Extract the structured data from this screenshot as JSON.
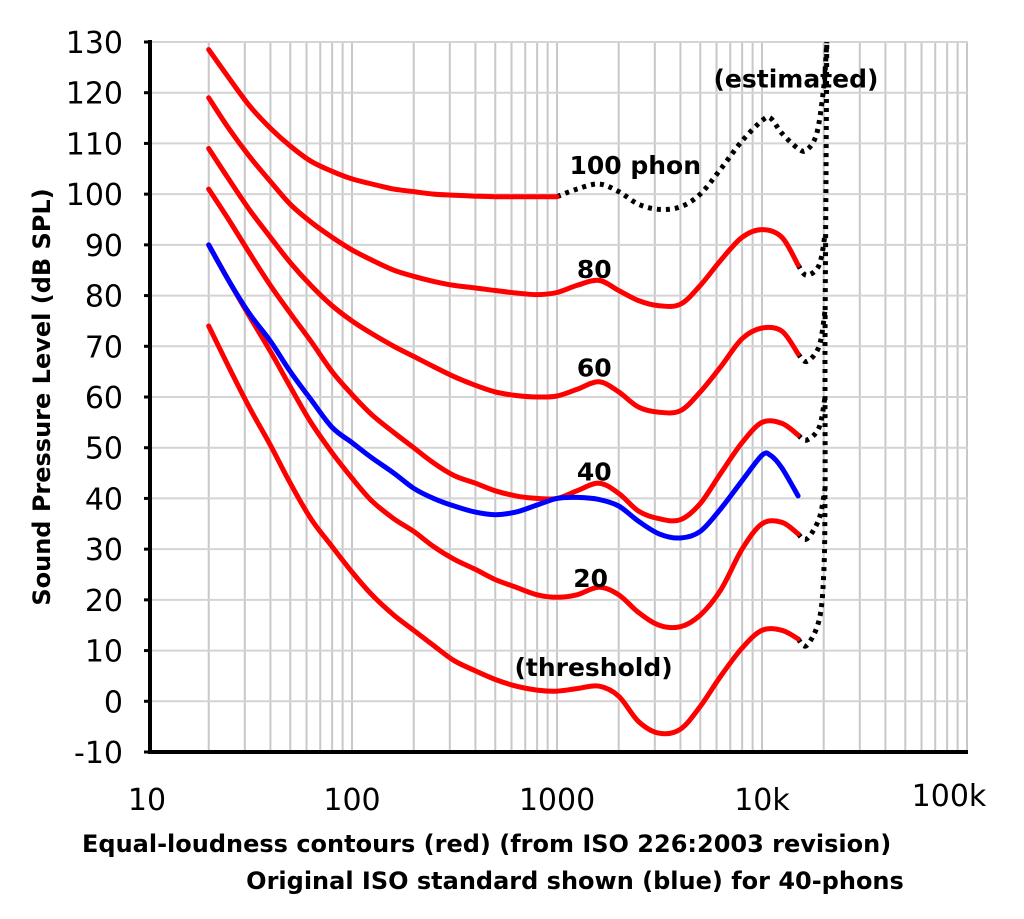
{
  "chart_data": {
    "type": "line",
    "title": "Equal-loudness contours (red) (from ISO 226:2003 revision)",
    "subtitle": "Original ISO standard shown (blue) for 40-phons",
    "xlabel_lines": [
      "Equal-loudness contours (red) (from ISO 226:2003 revision)",
      "Original ISO standard shown (blue) for 40-phons"
    ],
    "ylabel": "Sound Pressure Level (dB SPL)",
    "xscale": "log",
    "xlim": [
      10,
      100000
    ],
    "ylim": [
      -10,
      130
    ],
    "grid": true,
    "x_ticks": [
      {
        "v": 10,
        "label": "10"
      },
      {
        "v": 100,
        "label": "100"
      },
      {
        "v": 1000,
        "label": "1000"
      },
      {
        "v": 10000,
        "label": "10k"
      },
      {
        "v": 100000,
        "label": "100k"
      }
    ],
    "y_ticks": [
      {
        "v": 130,
        "label": "130"
      },
      {
        "v": 120,
        "label": "120"
      },
      {
        "v": 110,
        "label": "110"
      },
      {
        "v": 100,
        "label": "100"
      },
      {
        "v": 90,
        "label": "90"
      },
      {
        "v": 80,
        "label": "80"
      },
      {
        "v": 70,
        "label": "70"
      },
      {
        "v": 60,
        "label": "60"
      },
      {
        "v": 50,
        "label": "50"
      },
      {
        "v": 40,
        "label": "40"
      },
      {
        "v": 30,
        "label": "30"
      },
      {
        "v": 20,
        "label": "20"
      },
      {
        "v": 10,
        "label": "10"
      },
      {
        "v": 0,
        "label": "0"
      },
      {
        "v": -10,
        "label": "-10"
      }
    ],
    "annotations": [
      {
        "text": "(estimated)",
        "f": 5800,
        "db": 121
      },
      {
        "text": "100 phon",
        "f": 1150,
        "db": 104
      },
      {
        "text": "80",
        "f": 1250,
        "db": 83.5
      },
      {
        "text": "60",
        "f": 1250,
        "db": 64
      },
      {
        "text": "40",
        "f": 1250,
        "db": 43.5
      },
      {
        "text": "20",
        "f": 1200,
        "db": 22.5
      },
      {
        "text": "(threshold)",
        "f": 620,
        "db": 5
      }
    ],
    "colors": {
      "iso2003": "#ff0000",
      "original": "#0000ff",
      "estimated": "#000000"
    },
    "series": [
      {
        "name": "0 phon (threshold)",
        "style": "iso2003",
        "points": [
          [
            20,
            74
          ],
          [
            25,
            66
          ],
          [
            31.5,
            58
          ],
          [
            40,
            50.5
          ],
          [
            50,
            43
          ],
          [
            63,
            36
          ],
          [
            80,
            30.5
          ],
          [
            100,
            25.5
          ],
          [
            125,
            21
          ],
          [
            160,
            17
          ],
          [
            200,
            14
          ],
          [
            250,
            11
          ],
          [
            315,
            8
          ],
          [
            400,
            6
          ],
          [
            500,
            4.3
          ],
          [
            630,
            3
          ],
          [
            800,
            2.2
          ],
          [
            1000,
            2
          ],
          [
            1250,
            2.5
          ],
          [
            1600,
            3
          ],
          [
            2000,
            1
          ],
          [
            2500,
            -4
          ],
          [
            3150,
            -6.3
          ],
          [
            4000,
            -5.5
          ],
          [
            5000,
            -1
          ],
          [
            6300,
            5
          ],
          [
            8000,
            10.5
          ],
          [
            10000,
            14
          ],
          [
            12500,
            14
          ],
          [
            15000,
            12.3
          ]
        ]
      },
      {
        "name": "20 phon",
        "style": "iso2003",
        "points": [
          [
            20,
            90
          ],
          [
            25,
            83
          ],
          [
            31.5,
            76
          ],
          [
            40,
            69
          ],
          [
            50,
            62
          ],
          [
            63,
            55
          ],
          [
            80,
            49
          ],
          [
            100,
            44
          ],
          [
            125,
            39.5
          ],
          [
            160,
            36
          ],
          [
            200,
            33.5
          ],
          [
            250,
            30.5
          ],
          [
            315,
            28
          ],
          [
            400,
            26
          ],
          [
            500,
            24
          ],
          [
            630,
            22.5
          ],
          [
            800,
            21
          ],
          [
            1000,
            20.5
          ],
          [
            1250,
            21
          ],
          [
            1600,
            22.5
          ],
          [
            2000,
            21
          ],
          [
            2500,
            17.5
          ],
          [
            3150,
            15
          ],
          [
            4000,
            14.7
          ],
          [
            5000,
            17
          ],
          [
            6300,
            22
          ],
          [
            8000,
            30
          ],
          [
            10000,
            35
          ],
          [
            12500,
            35.3
          ],
          [
            15000,
            33
          ]
        ]
      },
      {
        "name": "40 phon",
        "style": "iso2003",
        "points": [
          [
            20,
            101
          ],
          [
            25,
            95
          ],
          [
            31.5,
            88.5
          ],
          [
            40,
            82
          ],
          [
            50,
            76.5
          ],
          [
            63,
            71
          ],
          [
            80,
            65
          ],
          [
            100,
            60.5
          ],
          [
            125,
            56.5
          ],
          [
            160,
            53
          ],
          [
            200,
            50
          ],
          [
            250,
            47
          ],
          [
            315,
            44.5
          ],
          [
            400,
            43
          ],
          [
            500,
            41.5
          ],
          [
            630,
            40.5
          ],
          [
            800,
            40
          ],
          [
            1000,
            40
          ],
          [
            1250,
            41.5
          ],
          [
            1600,
            43
          ],
          [
            2000,
            41
          ],
          [
            2500,
            37.5
          ],
          [
            3150,
            36
          ],
          [
            4000,
            35.8
          ],
          [
            5000,
            39
          ],
          [
            6300,
            45
          ],
          [
            8000,
            51
          ],
          [
            10000,
            55
          ],
          [
            12500,
            54.8
          ],
          [
            15000,
            52.5
          ]
        ]
      },
      {
        "name": "60 phon",
        "style": "iso2003",
        "points": [
          [
            20,
            109
          ],
          [
            25,
            103
          ],
          [
            31.5,
            97
          ],
          [
            40,
            91.5
          ],
          [
            50,
            86.5
          ],
          [
            63,
            82
          ],
          [
            80,
            78
          ],
          [
            100,
            75
          ],
          [
            125,
            72.5
          ],
          [
            160,
            70
          ],
          [
            200,
            68
          ],
          [
            250,
            66
          ],
          [
            315,
            64
          ],
          [
            400,
            62.3
          ],
          [
            500,
            61
          ],
          [
            630,
            60.3
          ],
          [
            800,
            60
          ],
          [
            1000,
            60.2
          ],
          [
            1250,
            61.5
          ],
          [
            1600,
            63
          ],
          [
            2000,
            61
          ],
          [
            2500,
            58
          ],
          [
            3150,
            57
          ],
          [
            4000,
            57.3
          ],
          [
            5000,
            61
          ],
          [
            6300,
            66
          ],
          [
            8000,
            71.5
          ],
          [
            10000,
            73.6
          ],
          [
            12500,
            73
          ],
          [
            15000,
            68.5
          ]
        ]
      },
      {
        "name": "80 phon",
        "style": "iso2003",
        "points": [
          [
            20,
            119
          ],
          [
            25,
            113
          ],
          [
            31.5,
            107.5
          ],
          [
            40,
            102.5
          ],
          [
            50,
            98
          ],
          [
            63,
            94.5
          ],
          [
            80,
            91.5
          ],
          [
            100,
            89
          ],
          [
            125,
            87
          ],
          [
            160,
            85
          ],
          [
            200,
            83.8
          ],
          [
            250,
            82.8
          ],
          [
            315,
            82
          ],
          [
            400,
            81.5
          ],
          [
            500,
            81
          ],
          [
            630,
            80.5
          ],
          [
            800,
            80.2
          ],
          [
            1000,
            80.6
          ],
          [
            1250,
            82
          ],
          [
            1600,
            83
          ],
          [
            2000,
            81
          ],
          [
            2500,
            79
          ],
          [
            3150,
            78
          ],
          [
            4000,
            78.3
          ],
          [
            5000,
            82
          ],
          [
            6300,
            87
          ],
          [
            8000,
            91.5
          ],
          [
            10000,
            93
          ],
          [
            12500,
            91.5
          ],
          [
            15000,
            86
          ]
        ]
      },
      {
        "name": "100 phon",
        "style": "iso2003",
        "points": [
          [
            20,
            128.5
          ],
          [
            25,
            123
          ],
          [
            31.5,
            117.5
          ],
          [
            40,
            113
          ],
          [
            50,
            109.5
          ],
          [
            63,
            106.5
          ],
          [
            80,
            104.5
          ],
          [
            100,
            103
          ],
          [
            125,
            102
          ],
          [
            160,
            101
          ],
          [
            200,
            100.5
          ],
          [
            250,
            100
          ],
          [
            315,
            99.8
          ],
          [
            400,
            99.6
          ],
          [
            500,
            99.5
          ],
          [
            630,
            99.5
          ],
          [
            800,
            99.5
          ],
          [
            1000,
            99.5
          ]
        ]
      },
      {
        "name": "40 phon (original ISO)",
        "style": "original",
        "points": [
          [
            20,
            90
          ],
          [
            25,
            83
          ],
          [
            31.5,
            76.5
          ],
          [
            40,
            71
          ],
          [
            50,
            65
          ],
          [
            63,
            59.5
          ],
          [
            80,
            54
          ],
          [
            100,
            51
          ],
          [
            125,
            48
          ],
          [
            160,
            45
          ],
          [
            200,
            42
          ],
          [
            250,
            40
          ],
          [
            315,
            38.5
          ],
          [
            400,
            37.3
          ],
          [
            500,
            36.8
          ],
          [
            630,
            37.3
          ],
          [
            800,
            38.7
          ],
          [
            1000,
            40
          ],
          [
            1250,
            40.2
          ],
          [
            1600,
            39.8
          ],
          [
            2000,
            38.5
          ],
          [
            2500,
            35.5
          ],
          [
            3150,
            33
          ],
          [
            4000,
            32.2
          ],
          [
            5000,
            33.5
          ],
          [
            6300,
            38
          ],
          [
            8000,
            43.5
          ],
          [
            10000,
            48.5
          ],
          [
            11000,
            48.5
          ],
          [
            12500,
            46
          ],
          [
            15000,
            40.5
          ]
        ]
      },
      {
        "name": "100 phon (estimated)",
        "style": "estimated",
        "points": [
          [
            1000,
            99.5
          ],
          [
            1250,
            101
          ],
          [
            1600,
            102
          ],
          [
            2000,
            100.5
          ],
          [
            2500,
            98
          ],
          [
            3150,
            97
          ],
          [
            4000,
            97.5
          ],
          [
            5000,
            100
          ],
          [
            6300,
            105
          ],
          [
            8000,
            110.5
          ],
          [
            10000,
            114.5
          ],
          [
            11000,
            115
          ],
          [
            12500,
            112
          ],
          [
            15000,
            109
          ],
          [
            16500,
            108.7
          ],
          [
            18500,
            112
          ],
          [
            20000,
            121
          ],
          [
            20700,
            130
          ]
        ]
      },
      {
        "name": "80 phon (estimated)",
        "style": "estimated",
        "points": [
          [
            15000,
            86
          ],
          [
            16500,
            84
          ],
          [
            19000,
            86
          ],
          [
            20300,
            92
          ]
        ]
      },
      {
        "name": "60 phon (estimated)",
        "style": "estimated",
        "points": [
          [
            15000,
            68.5
          ],
          [
            16500,
            67
          ],
          [
            19000,
            70
          ],
          [
            20300,
            77
          ]
        ]
      },
      {
        "name": "40 phon (estimated)",
        "style": "estimated",
        "points": [
          [
            15000,
            52.5
          ],
          [
            16500,
            51.5
          ],
          [
            19000,
            54
          ],
          [
            20300,
            60
          ]
        ]
      },
      {
        "name": "20 phon (estimated)",
        "style": "estimated",
        "points": [
          [
            15000,
            33
          ],
          [
            16500,
            32
          ],
          [
            19000,
            36
          ],
          [
            20300,
            42
          ]
        ]
      },
      {
        "name": "0 phon (estimated)",
        "style": "estimated",
        "points": [
          [
            15000,
            12.3
          ],
          [
            16500,
            11
          ],
          [
            19000,
            16
          ],
          [
            20000,
            25
          ],
          [
            20300,
            40
          ],
          [
            20300,
            70
          ],
          [
            20500,
            100
          ],
          [
            20700,
            130
          ]
        ]
      }
    ]
  }
}
